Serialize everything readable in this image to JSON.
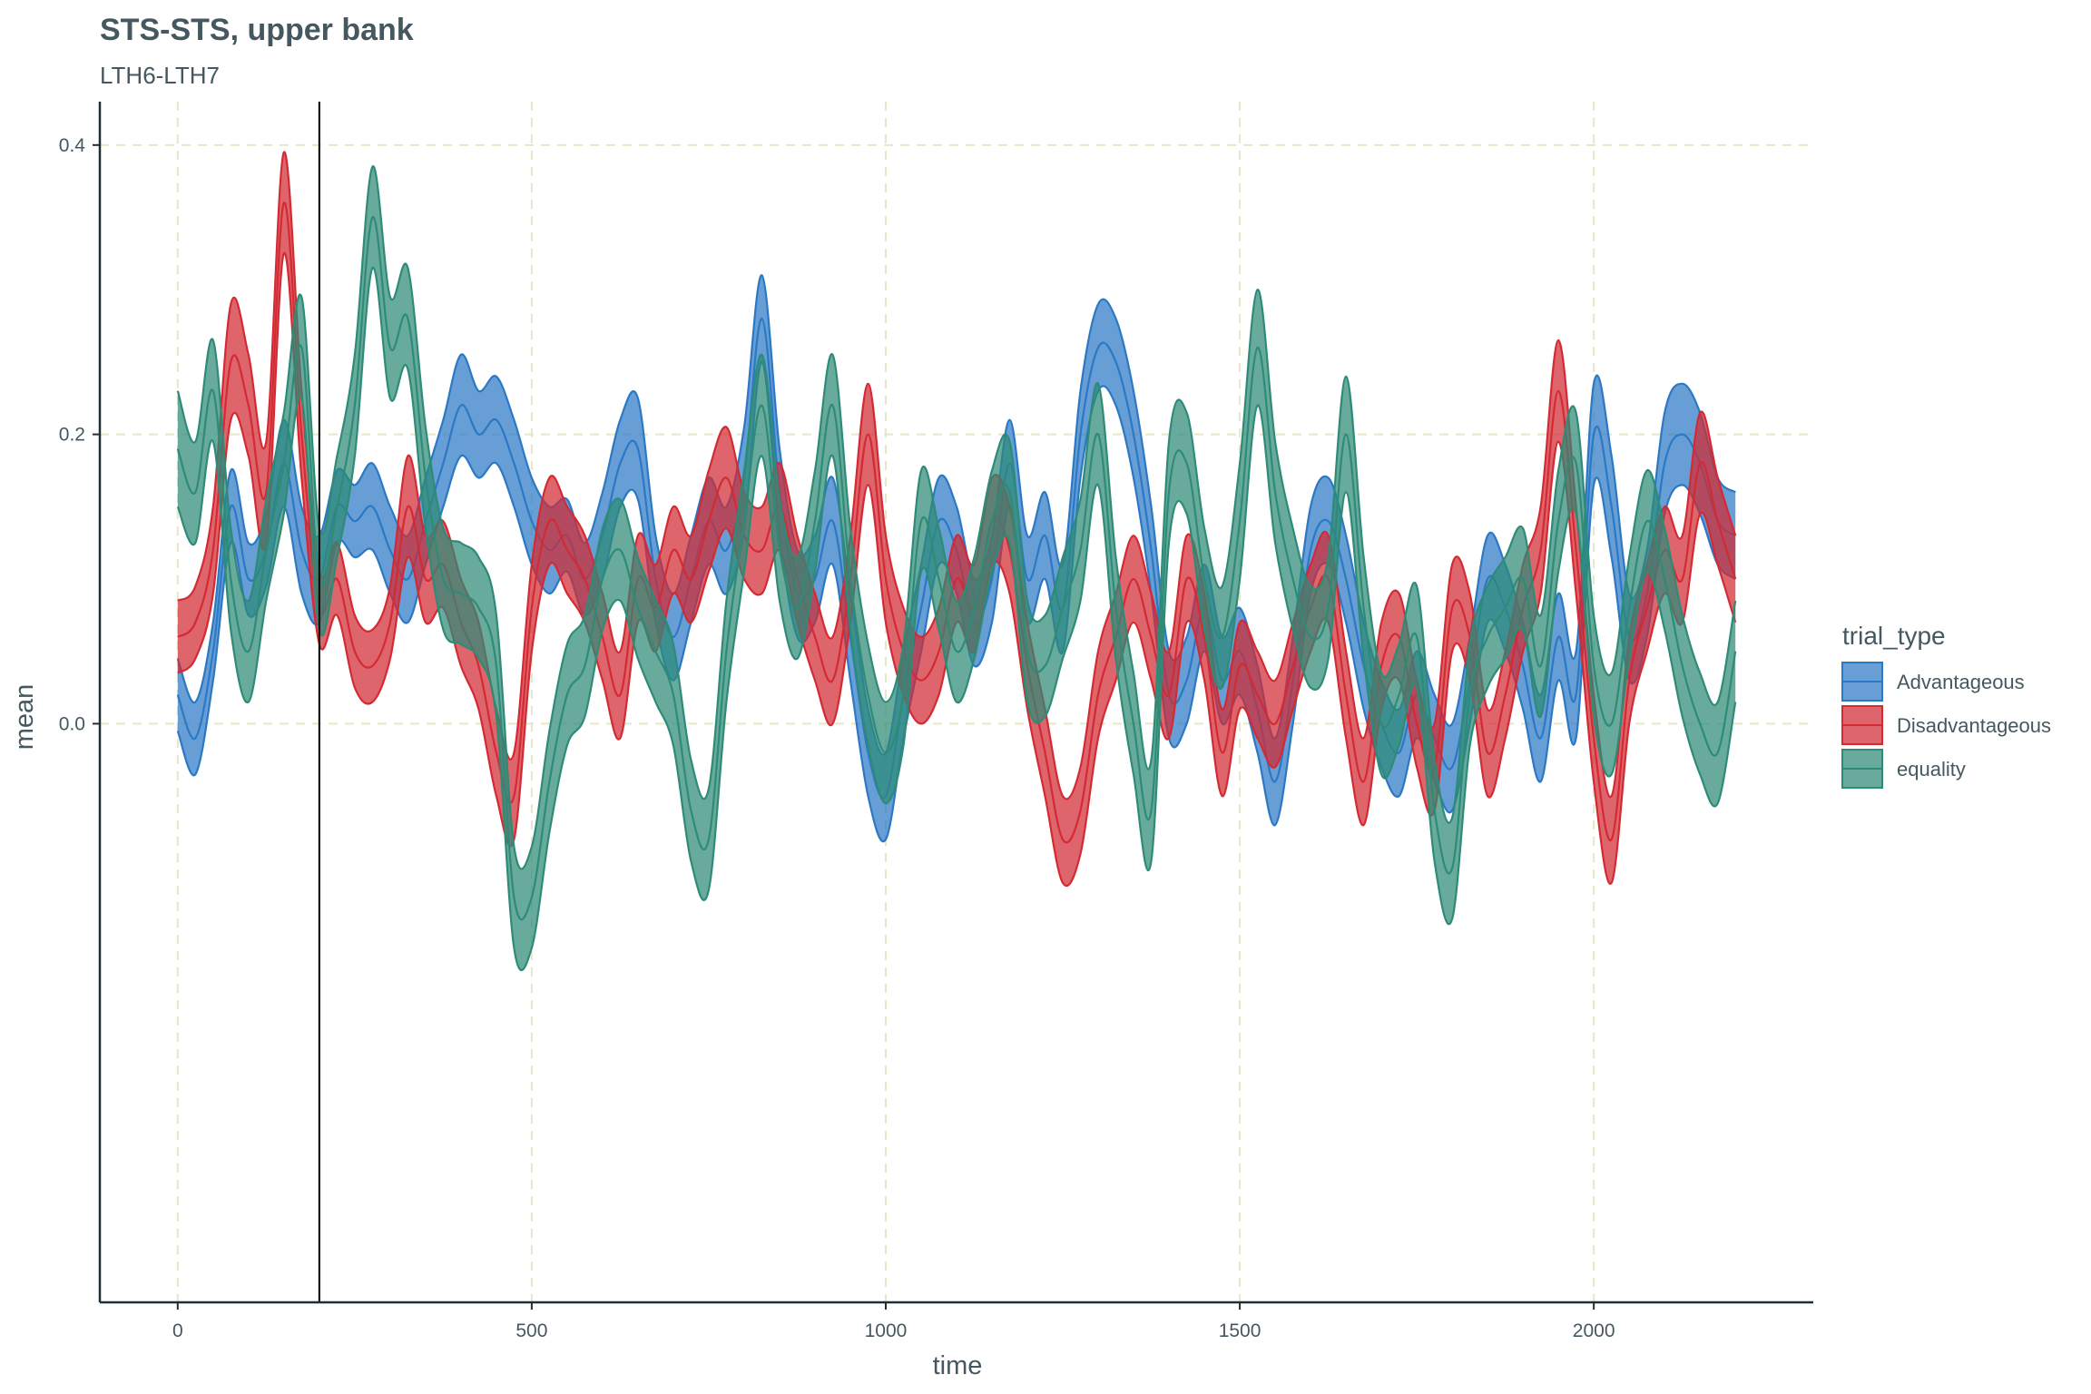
{
  "chart_data": {
    "type": "area",
    "title": "STS-STS, upper bank",
    "subtitle": "LTH6-LTH7",
    "xlabel": "time",
    "ylabel": "mean",
    "xlim": [
      -110,
      2310
    ],
    "ylim": [
      -0.4,
      0.43
    ],
    "x_ticks": [
      0,
      500,
      1000,
      1500,
      2000
    ],
    "x_tick_labels": [
      "0",
      "500",
      "1000",
      "1500",
      "2000"
    ],
    "y_ticks": [
      0.0,
      0.2,
      0.4
    ],
    "y_tick_labels": [
      "0.0",
      "0.2",
      "0.4"
    ],
    "grid": "dashed-major",
    "vline_x": 200,
    "legend_title": "trial_type",
    "legend_position": "right",
    "x": [
      0,
      25,
      50,
      75,
      100,
      125,
      150,
      175,
      200,
      225,
      250,
      275,
      300,
      325,
      350,
      375,
      400,
      425,
      450,
      475,
      500,
      525,
      550,
      575,
      600,
      625,
      650,
      675,
      700,
      725,
      750,
      775,
      800,
      825,
      850,
      875,
      900,
      925,
      950,
      975,
      1000,
      1025,
      1050,
      1075,
      1100,
      1125,
      1150,
      1175,
      1200,
      1225,
      1250,
      1275,
      1300,
      1325,
      1350,
      1375,
      1400,
      1425,
      1450,
      1475,
      1500,
      1525,
      1550,
      1575,
      1600,
      1625,
      1650,
      1675,
      1700,
      1725,
      1750,
      1775,
      1800,
      1825,
      1850,
      1875,
      1900,
      1925,
      1950,
      1975,
      2000,
      2025,
      2050,
      2075,
      2100,
      2125,
      2150,
      2175,
      2200
    ],
    "series": [
      {
        "name": "Advantageous",
        "color": "#2b78c5",
        "mean": [
          0.02,
          -0.01,
          0.05,
          0.15,
          0.1,
          0.12,
          0.18,
          0.12,
          0.1,
          0.15,
          0.14,
          0.15,
          0.12,
          0.1,
          0.14,
          0.18,
          0.22,
          0.2,
          0.21,
          0.18,
          0.14,
          0.12,
          0.13,
          0.1,
          0.13,
          0.18,
          0.19,
          0.1,
          0.06,
          0.1,
          0.14,
          0.12,
          0.17,
          0.28,
          0.16,
          0.09,
          0.1,
          0.14,
          0.06,
          -0.02,
          -0.05,
          0.02,
          0.08,
          0.14,
          0.12,
          0.07,
          0.1,
          0.18,
          0.1,
          0.13,
          0.08,
          0.2,
          0.26,
          0.25,
          0.2,
          0.12,
          0.02,
          0.03,
          0.08,
          0.03,
          0.05,
          0.01,
          -0.04,
          0.03,
          0.12,
          0.14,
          0.1,
          0.04,
          0.0,
          -0.02,
          0.02,
          -0.01,
          -0.03,
          0.03,
          0.1,
          0.08,
          0.04,
          -0.01,
          0.06,
          0.02,
          0.2,
          0.15,
          0.06,
          0.09,
          0.18,
          0.2,
          0.18,
          0.14,
          0.13
        ],
        "halfwidth": [
          0.025,
          0.025,
          0.02,
          0.025,
          0.025,
          0.025,
          0.03,
          0.03,
          0.03,
          0.025,
          0.025,
          0.03,
          0.03,
          0.03,
          0.03,
          0.03,
          0.035,
          0.03,
          0.03,
          0.03,
          0.03,
          0.03,
          0.025,
          0.025,
          0.03,
          0.03,
          0.035,
          0.03,
          0.03,
          0.03,
          0.03,
          0.03,
          0.035,
          0.03,
          0.03,
          0.03,
          0.03,
          0.03,
          0.03,
          0.03,
          0.03,
          0.03,
          0.03,
          0.03,
          0.03,
          0.03,
          0.03,
          0.03,
          0.03,
          0.03,
          0.03,
          0.03,
          0.03,
          0.03,
          0.03,
          0.03,
          0.03,
          0.03,
          0.03,
          0.03,
          0.03,
          0.03,
          0.03,
          0.03,
          0.03,
          0.03,
          0.03,
          0.03,
          0.03,
          0.03,
          0.03,
          0.03,
          0.03,
          0.03,
          0.03,
          0.03,
          0.03,
          0.03,
          0.03,
          0.03,
          0.035,
          0.035,
          0.03,
          0.03,
          0.035,
          0.035,
          0.035,
          0.03,
          0.03
        ]
      },
      {
        "name": "Disadvantageous",
        "color": "#d32a33",
        "mean": [
          0.06,
          0.07,
          0.12,
          0.25,
          0.22,
          0.16,
          0.36,
          0.2,
          0.08,
          0.1,
          0.05,
          0.04,
          0.07,
          0.15,
          0.1,
          0.11,
          0.07,
          0.04,
          -0.02,
          -0.05,
          0.08,
          0.14,
          0.12,
          0.1,
          0.06,
          0.02,
          0.1,
          0.08,
          0.12,
          0.1,
          0.14,
          0.17,
          0.13,
          0.12,
          0.15,
          0.1,
          0.06,
          0.03,
          0.1,
          0.2,
          0.1,
          0.05,
          0.03,
          0.05,
          0.1,
          0.08,
          0.14,
          0.12,
          0.04,
          -0.02,
          -0.08,
          -0.06,
          0.02,
          0.06,
          0.1,
          0.06,
          0.02,
          0.1,
          0.06,
          -0.02,
          0.04,
          0.02,
          0.0,
          0.04,
          0.08,
          0.1,
          0.02,
          -0.04,
          0.04,
          0.06,
          0.0,
          -0.03,
          0.08,
          0.06,
          -0.02,
          0.02,
          0.08,
          0.12,
          0.23,
          0.12,
          -0.01,
          -0.08,
          0.03,
          0.08,
          0.12,
          0.1,
          0.18,
          0.14,
          0.1
        ],
        "halfwidth": [
          0.025,
          0.025,
          0.03,
          0.04,
          0.035,
          0.035,
          0.035,
          0.03,
          0.025,
          0.025,
          0.025,
          0.025,
          0.025,
          0.035,
          0.03,
          0.03,
          0.03,
          0.03,
          0.03,
          0.03,
          0.03,
          0.03,
          0.03,
          0.03,
          0.03,
          0.03,
          0.03,
          0.03,
          0.03,
          0.03,
          0.035,
          0.035,
          0.03,
          0.03,
          0.03,
          0.03,
          0.03,
          0.03,
          0.03,
          0.035,
          0.03,
          0.03,
          0.03,
          0.03,
          0.03,
          0.03,
          0.03,
          0.03,
          0.03,
          0.03,
          0.03,
          0.03,
          0.03,
          0.03,
          0.03,
          0.03,
          0.03,
          0.03,
          0.03,
          0.03,
          0.03,
          0.03,
          0.03,
          0.03,
          0.03,
          0.03,
          0.03,
          0.03,
          0.03,
          0.03,
          0.03,
          0.03,
          0.03,
          0.03,
          0.03,
          0.03,
          0.03,
          0.03,
          0.035,
          0.03,
          0.03,
          0.03,
          0.03,
          0.03,
          0.03,
          0.03,
          0.035,
          0.03,
          0.03
        ]
      },
      {
        "name": "equality",
        "color": "#2e8b77",
        "mean": [
          0.19,
          0.16,
          0.23,
          0.1,
          0.05,
          0.12,
          0.18,
          0.26,
          0.1,
          0.15,
          0.22,
          0.35,
          0.26,
          0.28,
          0.17,
          0.1,
          0.09,
          0.08,
          0.04,
          -0.12,
          -0.12,
          -0.04,
          0.02,
          0.04,
          0.1,
          0.12,
          0.08,
          0.05,
          0.02,
          -0.06,
          -0.08,
          0.05,
          0.14,
          0.22,
          0.12,
          0.08,
          0.14,
          0.22,
          0.1,
          0.02,
          -0.02,
          0.02,
          0.14,
          0.1,
          0.05,
          0.08,
          0.14,
          0.16,
          0.05,
          0.04,
          0.08,
          0.12,
          0.2,
          0.08,
          0.0,
          -0.06,
          0.16,
          0.18,
          0.1,
          0.06,
          0.14,
          0.26,
          0.16,
          0.1,
          0.06,
          0.08,
          0.2,
          0.08,
          0.0,
          0.02,
          0.06,
          -0.06,
          -0.1,
          0.02,
          0.06,
          0.08,
          0.1,
          0.04,
          0.14,
          0.18,
          0.04,
          0.0,
          0.08,
          0.14,
          0.1,
          0.04,
          0.0,
          -0.02,
          0.05
        ],
        "halfwidth": [
          0.04,
          0.035,
          0.035,
          0.035,
          0.035,
          0.035,
          0.035,
          0.035,
          0.035,
          0.035,
          0.035,
          0.035,
          0.035,
          0.035,
          0.035,
          0.035,
          0.035,
          0.035,
          0.035,
          0.035,
          0.035,
          0.035,
          0.035,
          0.035,
          0.035,
          0.035,
          0.035,
          0.035,
          0.035,
          0.035,
          0.035,
          0.035,
          0.035,
          0.035,
          0.035,
          0.035,
          0.035,
          0.035,
          0.035,
          0.035,
          0.035,
          0.035,
          0.035,
          0.035,
          0.035,
          0.035,
          0.035,
          0.035,
          0.035,
          0.035,
          0.035,
          0.035,
          0.035,
          0.035,
          0.035,
          0.035,
          0.035,
          0.035,
          0.035,
          0.035,
          0.04,
          0.04,
          0.035,
          0.035,
          0.035,
          0.035,
          0.04,
          0.035,
          0.035,
          0.035,
          0.035,
          0.035,
          0.035,
          0.035,
          0.035,
          0.035,
          0.035,
          0.035,
          0.035,
          0.035,
          0.035,
          0.035,
          0.035,
          0.035,
          0.035,
          0.035,
          0.035,
          0.035,
          0.035
        ]
      }
    ]
  }
}
